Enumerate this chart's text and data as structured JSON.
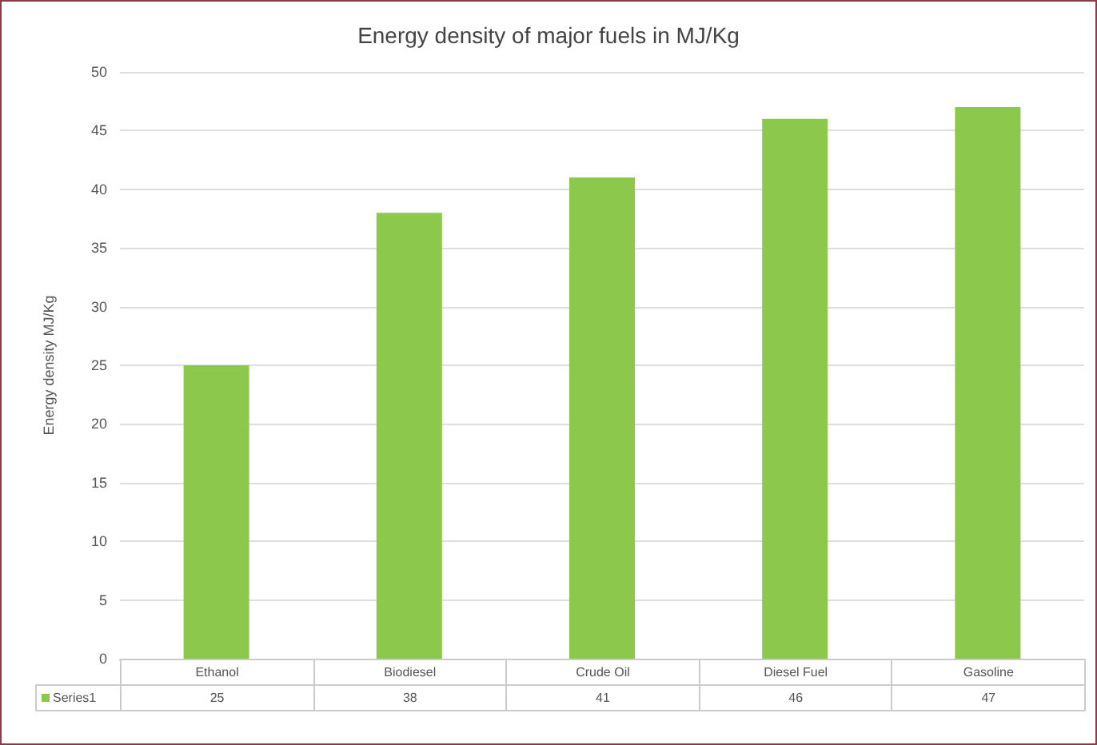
{
  "chart_data": {
    "type": "bar",
    "title": "Energy density of major fuels in MJ/Kg",
    "ylabel": "Energy density MJ/Kg",
    "categories": [
      "Ethanol",
      "Biodiesel",
      "Crude Oil",
      "Diesel Fuel",
      "Gasoline"
    ],
    "series": [
      {
        "name": "Series1",
        "color": "#8cc84b",
        "values": [
          25,
          38,
          41,
          46,
          47
        ]
      }
    ],
    "ylim": [
      0,
      50
    ],
    "yticks": [
      0,
      5,
      10,
      15,
      20,
      25,
      30,
      35,
      40,
      45,
      50
    ],
    "grid": "y",
    "data_labels": true
  }
}
